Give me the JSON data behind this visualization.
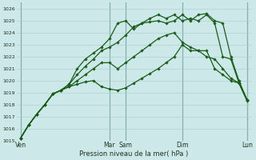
{
  "bg_color": "#cce8e8",
  "grid_color": "#aacccc",
  "line_color": "#1a5c1a",
  "marker_color": "#1a5c1a",
  "xlabel": "Pression niveau de la mer( hPa )",
  "ylim": [
    1015,
    1026.5
  ],
  "yticks": [
    1015,
    1016,
    1017,
    1018,
    1019,
    1020,
    1021,
    1022,
    1023,
    1024,
    1025,
    1026
  ],
  "xtick_labels": [
    "Ven",
    "Mar",
    "Sam",
    "Dim",
    "Lun"
  ],
  "xtick_positions": [
    0,
    11,
    13,
    20,
    28
  ],
  "vlines": [
    0,
    11,
    13,
    20,
    28
  ],
  "n_points": 29,
  "series": [
    [
      1015.2,
      1016.3,
      1017.2,
      1018.0,
      1018.9,
      1019.2,
      1019.5,
      1019.7,
      1019.9,
      1020.0,
      1019.5,
      1019.3,
      1019.2,
      1019.4,
      1019.8,
      1020.2,
      1020.6,
      1021.0,
      1021.5,
      1022.0,
      1023.0,
      1022.5,
      1022.5,
      1022.5,
      1021.0,
      1020.5,
      1020.0,
      1019.8,
      1018.4
    ],
    [
      1015.2,
      1016.3,
      1017.2,
      1018.0,
      1018.9,
      1019.2,
      1019.5,
      1020.0,
      1020.5,
      1021.0,
      1021.5,
      1021.5,
      1021.0,
      1021.5,
      1022.0,
      1022.5,
      1023.0,
      1023.5,
      1023.8,
      1024.0,
      1023.2,
      1022.8,
      1022.5,
      1022.0,
      1021.8,
      1021.0,
      1020.2,
      1019.8,
      1018.4
    ],
    [
      1015.2,
      1016.3,
      1017.2,
      1018.0,
      1018.9,
      1019.2,
      1019.7,
      1020.5,
      1021.2,
      1021.8,
      1022.5,
      1022.8,
      1023.2,
      1023.8,
      1024.5,
      1024.8,
      1024.9,
      1025.0,
      1024.8,
      1025.0,
      1025.5,
      1025.0,
      1025.5,
      1025.6,
      1025.0,
      1024.8,
      1022.0,
      1020.0,
      1018.4
    ],
    [
      1015.2,
      1016.3,
      1017.2,
      1018.0,
      1018.9,
      1019.2,
      1019.7,
      1021.0,
      1021.8,
      1022.3,
      1022.8,
      1023.5,
      1024.8,
      1025.0,
      1024.3,
      1024.8,
      1025.2,
      1025.5,
      1025.2,
      1025.5,
      1025.0,
      1025.2,
      1025.0,
      1025.5,
      1024.8,
      1022.0,
      1021.8,
      1019.8,
      1018.3
    ]
  ],
  "vline_color": "#558888",
  "figsize": [
    3.2,
    2.0
  ],
  "dpi": 100
}
